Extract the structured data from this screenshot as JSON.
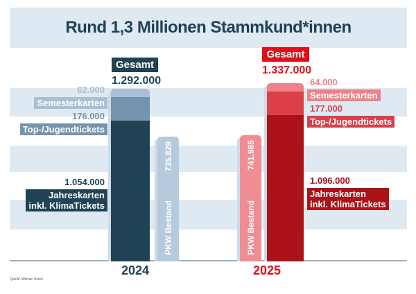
{
  "title": "Rund 1,3 Millionen Stammkund*innen",
  "source": "Quelle: Wiener Linien",
  "gesamt_label": "Gesamt",
  "g2024": {
    "year": "2024",
    "total": "1.292.000",
    "semester_value": "62.000",
    "semester_label": "Semesterkarten",
    "top_value": "176.000",
    "top_label": "Top-/Jugendtickets",
    "jahres_value": "1.054.000",
    "jahres_label_1": "Jahreskarten",
    "jahres_label_2": "inkl. KlimaTickets",
    "pkw_value": "735.829",
    "pkw_label": "PKW Bestand"
  },
  "g2025": {
    "year": "2025",
    "total": "1.337.000",
    "semester_value": "64.000",
    "semester_label": "Semesterkarten",
    "top_value": "177.000",
    "top_label": "Top-/Jugendtickets",
    "jahres_value": "1.096.000",
    "jahres_label_1": "Jahreskarten",
    "jahres_label_2": "inkl. KlimaTickets",
    "pkw_value": "741.985",
    "pkw_label": "PKW Bestand"
  },
  "colors": {
    "teal-dark": "#1f4254",
    "teal-mid": "#7394ad",
    "teal-light": "#a9bfd3",
    "pkw-blue": "#b6cadd",
    "red-bright": "#e20d18",
    "red-mid": "#dd3f49",
    "red-salmon": "#ec8188",
    "red-dark": "#ab1318",
    "pkw-red": "#f08d92",
    "stripe": "#dfe9f2",
    "baseline": "#9dafbb",
    "sliver": "#cddce8"
  },
  "chart_data": {
    "type": "bar",
    "title": "Rund 1,3 Millionen Stammkund*innen",
    "categories": [
      "2024",
      "2025"
    ],
    "series": [
      {
        "key": "sem",
        "name": "Semesterkarten",
        "values": [
          62000,
          64000
        ]
      },
      {
        "key": "top",
        "name": "Top-/Jugendtickets",
        "values": [
          176000,
          177000
        ]
      },
      {
        "key": "jahres",
        "name": "Jahreskarten inkl. KlimaTickets",
        "values": [
          1054000,
          1096000
        ]
      }
    ],
    "totals": [
      1292000,
      1337000
    ],
    "comparison_bars": {
      "name": "PKW Bestand",
      "values": [
        735829,
        741985
      ]
    },
    "xlabel": "",
    "ylabel": "",
    "legend_position": "beside-bars",
    "grid": "horizontal-bands",
    "source": "Quelle: Wiener Linien"
  }
}
